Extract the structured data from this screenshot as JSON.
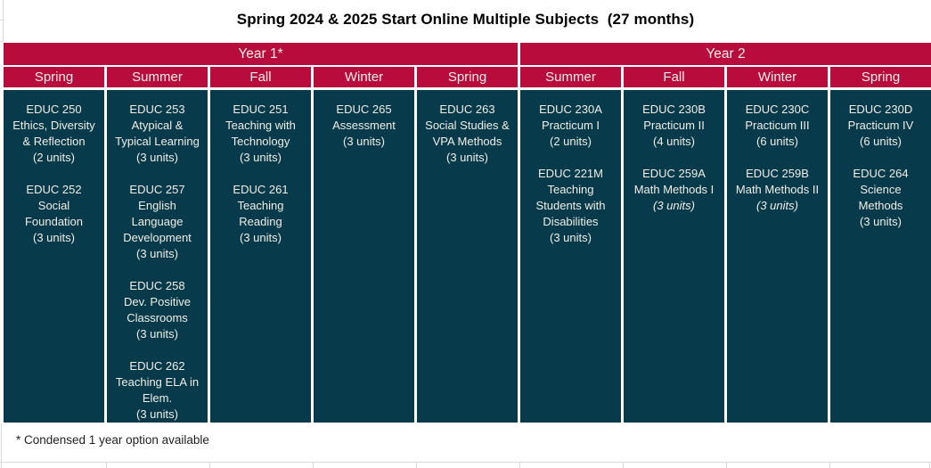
{
  "title": "Spring 2024 & 2025 Start Online Multiple Subjects  (27 months)",
  "footnote": "* Condensed 1 year option available",
  "colors": {
    "header_bg": "#B80D3C",
    "cell_bg": "#073B4C",
    "header_text": "#F6EFE6",
    "cell_text": "#F2EDE3",
    "title_text": "#000000",
    "footnote_text": "#1F1F1F",
    "gridline": "#D8D8D8"
  },
  "table": {
    "year_headers": [
      {
        "label": "Year 1*",
        "span": 5
      },
      {
        "label": "Year 2",
        "span": 4
      }
    ],
    "season_headers": [
      "Spring",
      "Summer",
      "Fall",
      "Winter",
      "Spring",
      "Summer",
      "Fall",
      "Winter",
      "Spring"
    ],
    "columns": [
      {
        "year": "Year 1",
        "season": "Spring",
        "courses": [
          {
            "code": "EDUC 250",
            "title": "Ethics, Diversity\n& Reflection",
            "units": "(2 units)",
            "units_italic": false
          },
          {
            "code": "EDUC 252",
            "title": "Social\nFoundation",
            "units": "(3 units)",
            "units_italic": false
          }
        ]
      },
      {
        "year": "Year 1",
        "season": "Summer",
        "courses": [
          {
            "code": "EDUC 253",
            "title": "Atypical &\nTypical Learning",
            "units": "(3 units)",
            "units_italic": false
          },
          {
            "code": "EDUC 257",
            "title": "English\nLanguage\nDevelopment",
            "units": "(3 units)",
            "units_italic": false
          },
          {
            "code": "EDUC 258",
            "title": "Dev. Positive\nClassrooms",
            "units": "(3 units)",
            "units_italic": false
          },
          {
            "code": "EDUC 262",
            "title": "Teaching ELA in\nElem.",
            "units": "(3 units)",
            "units_italic": false
          }
        ]
      },
      {
        "year": "Year 1",
        "season": "Fall",
        "courses": [
          {
            "code": "EDUC 251",
            "title": "Teaching with\nTechnology",
            "units": "(3 units)",
            "units_italic": false
          },
          {
            "code": "EDUC 261",
            "title": "Teaching\nReading",
            "units": "(3 units)",
            "units_italic": false
          }
        ]
      },
      {
        "year": "Year 1",
        "season": "Winter",
        "courses": [
          {
            "code": "EDUC 265",
            "title": "Assessment",
            "units": "(3 units)",
            "units_italic": false
          }
        ]
      },
      {
        "year": "Year 1",
        "season": "Spring",
        "courses": [
          {
            "code": "EDUC 263",
            "title": "Social Studies &\nVPA Methods",
            "units": "(3 units)",
            "units_italic": false
          }
        ]
      },
      {
        "year": "Year 2",
        "season": "Summer",
        "courses": [
          {
            "code": "EDUC 230A",
            "title": "Practicum I",
            "units": "(2 units)",
            "units_italic": false
          },
          {
            "code": "EDUC 221M",
            "title": "Teaching\nStudents with\nDisabilities",
            "units": "(3 units)",
            "units_italic": false
          }
        ]
      },
      {
        "year": "Year 2",
        "season": "Fall",
        "courses": [
          {
            "code": "EDUC 230B",
            "title": "Practicum II",
            "units": "(4 units)",
            "units_italic": false
          },
          {
            "code": "EDUC 259A",
            "title": "Math Methods I",
            "units": "(3 units)",
            "units_italic": true
          }
        ]
      },
      {
        "year": "Year 2",
        "season": "Winter",
        "courses": [
          {
            "code": "EDUC 230C",
            "title": "Practicum III",
            "units": "(6 units)",
            "units_italic": false
          },
          {
            "code": "EDUC 259B",
            "title": "Math Methods II",
            "units": "(3 units)",
            "units_italic": true
          }
        ]
      },
      {
        "year": "Year 2",
        "season": "Spring",
        "courses": [
          {
            "code": "EDUC 230D",
            "title": "Practicum IV",
            "units": "(6 units)",
            "units_italic": false
          },
          {
            "code": "EDUC 264",
            "title": "Science\nMethods",
            "units": "(3 units)",
            "units_italic": false
          }
        ]
      }
    ]
  }
}
